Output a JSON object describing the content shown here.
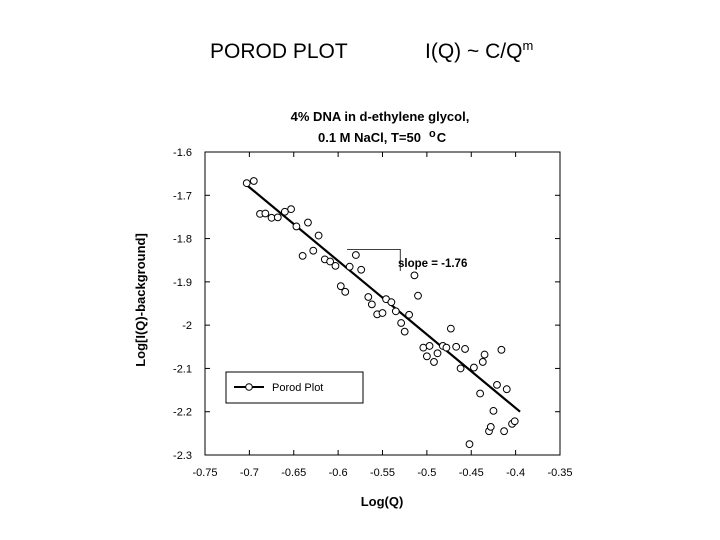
{
  "slide": {
    "title_left": "POROD PLOT",
    "title_right_base": "I(Q) ~ C/Q",
    "title_right_sup": "m"
  },
  "chart_data": {
    "type": "scatter",
    "title_line1": "4% DNA in d-ethylene glycol,",
    "title_line2": "0.1 M NaCl, T=50",
    "title_degree": "o",
    "title_unit": "C",
    "xlabel": "Log(Q)",
    "ylabel": "Log[I(Q)-background]",
    "xlim": [
      -0.75,
      -0.35
    ],
    "ylim": [
      -2.3,
      -1.6
    ],
    "xticks": [
      -0.75,
      -0.7,
      -0.65,
      -0.6,
      -0.55,
      -0.5,
      -0.45,
      -0.4,
      -0.35
    ],
    "xtick_labels": [
      "-0.75",
      "-0.7",
      "-0.65",
      "-0.6",
      "-0.55",
      "-0.5",
      "-0.45",
      "-0.4",
      "-0.35"
    ],
    "yticks": [
      -1.6,
      -1.7,
      -1.8,
      -1.9,
      -2.0,
      -2.1,
      -2.2,
      -2.3
    ],
    "ytick_labels": [
      "-1.6",
      "-1.7",
      "-1.8",
      "-1.9",
      "-2",
      "-2.1",
      "-2.2",
      "-2.3"
    ],
    "legend": {
      "label": "Porod Plot",
      "position": "bottom-left"
    },
    "annotation": {
      "text": "slope = -1.76"
    },
    "fit_line": {
      "x": [
        -0.705,
        -0.395
      ],
      "y": [
        -1.673,
        -2.2
      ]
    },
    "slope_triangle": {
      "x": [
        -0.59,
        -0.53
      ],
      "y": [
        -1.825,
        -1.875
      ]
    },
    "series": [
      {
        "points": [
          {
            "x": -0.703,
            "y": -1.672
          },
          {
            "x": -0.695,
            "y": -1.667
          },
          {
            "x": -0.688,
            "y": -1.743
          },
          {
            "x": -0.682,
            "y": -1.742
          },
          {
            "x": -0.675,
            "y": -1.752
          },
          {
            "x": -0.668,
            "y": -1.751
          },
          {
            "x": -0.66,
            "y": -1.738
          },
          {
            "x": -0.653,
            "y": -1.732
          },
          {
            "x": -0.647,
            "y": -1.772
          },
          {
            "x": -0.64,
            "y": -1.84
          },
          {
            "x": -0.634,
            "y": -1.763
          },
          {
            "x": -0.628,
            "y": -1.828
          },
          {
            "x": -0.622,
            "y": -1.793
          },
          {
            "x": -0.615,
            "y": -1.848
          },
          {
            "x": -0.609,
            "y": -1.853
          },
          {
            "x": -0.603,
            "y": -1.863
          },
          {
            "x": -0.597,
            "y": -1.91
          },
          {
            "x": -0.592,
            "y": -1.923
          },
          {
            "x": -0.587,
            "y": -1.865
          },
          {
            "x": -0.58,
            "y": -1.838
          },
          {
            "x": -0.574,
            "y": -1.872
          },
          {
            "x": -0.566,
            "y": -1.935
          },
          {
            "x": -0.562,
            "y": -1.952
          },
          {
            "x": -0.556,
            "y": -1.975
          },
          {
            "x": -0.55,
            "y": -1.972
          },
          {
            "x": -0.546,
            "y": -1.94
          },
          {
            "x": -0.54,
            "y": -1.947
          },
          {
            "x": -0.535,
            "y": -1.968
          },
          {
            "x": -0.529,
            "y": -1.995
          },
          {
            "x": -0.525,
            "y": -2.015
          },
          {
            "x": -0.52,
            "y": -1.976
          },
          {
            "x": -0.514,
            "y": -1.885
          },
          {
            "x": -0.51,
            "y": -1.932
          },
          {
            "x": -0.504,
            "y": -2.052
          },
          {
            "x": -0.5,
            "y": -2.072
          },
          {
            "x": -0.497,
            "y": -2.048
          },
          {
            "x": -0.492,
            "y": -2.085
          },
          {
            "x": -0.488,
            "y": -2.065
          },
          {
            "x": -0.482,
            "y": -2.048
          },
          {
            "x": -0.478,
            "y": -2.052
          },
          {
            "x": -0.473,
            "y": -2.008
          },
          {
            "x": -0.467,
            "y": -2.05
          },
          {
            "x": -0.462,
            "y": -2.1
          },
          {
            "x": -0.457,
            "y": -2.055
          },
          {
            "x": -0.452,
            "y": -2.275
          },
          {
            "x": -0.447,
            "y": -2.098
          },
          {
            "x": -0.44,
            "y": -2.158
          },
          {
            "x": -0.437,
            "y": -2.085
          },
          {
            "x": -0.43,
            "y": -2.245
          },
          {
            "x": -0.428,
            "y": -2.235
          },
          {
            "x": -0.425,
            "y": -2.198
          },
          {
            "x": -0.421,
            "y": -2.138
          },
          {
            "x": -0.416,
            "y": -2.057
          },
          {
            "x": -0.41,
            "y": -2.148
          },
          {
            "x": -0.413,
            "y": -2.245
          },
          {
            "x": -0.404,
            "y": -2.228
          },
          {
            "x": -0.401,
            "y": -2.222
          },
          {
            "x": -0.435,
            "y": -2.068
          }
        ]
      }
    ]
  }
}
